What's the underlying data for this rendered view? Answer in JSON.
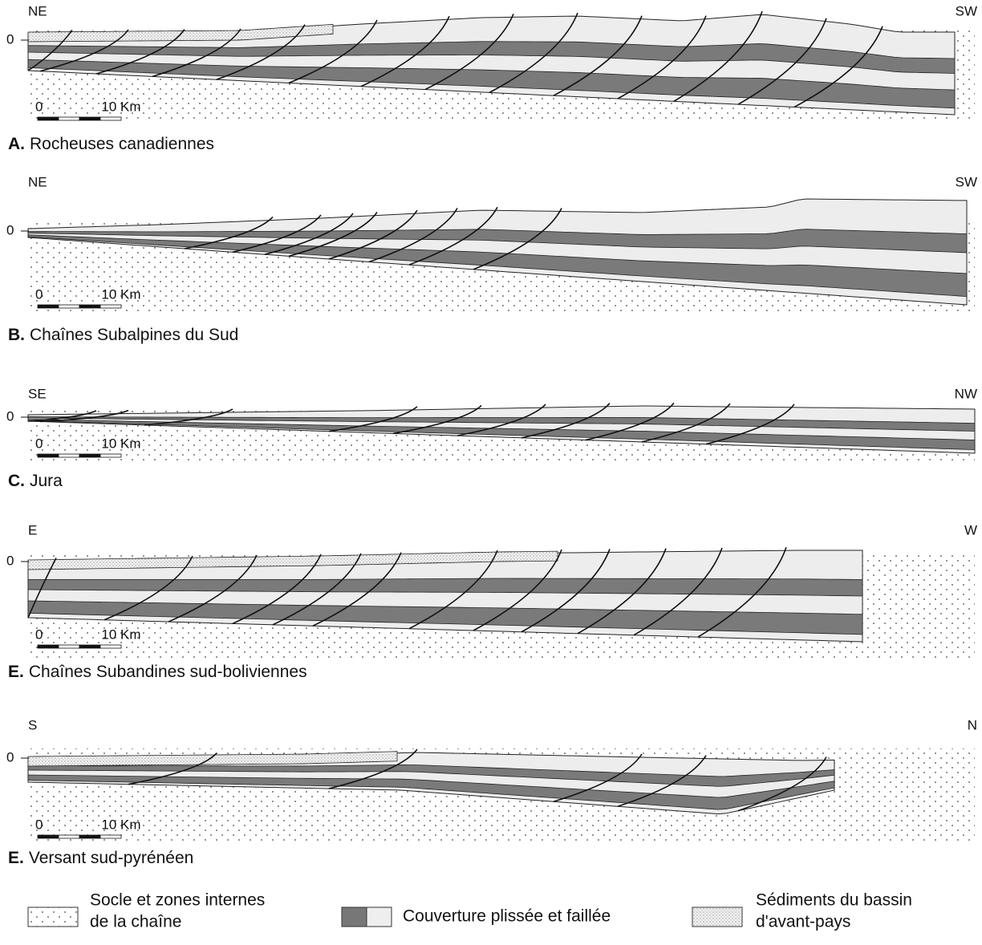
{
  "sections": [
    {
      "left": "NE",
      "right": "SW",
      "depth": "0",
      "scale_start": "0",
      "scale_end": "10 Km",
      "letter": "A.",
      "title": "Rocheuses canadiennes"
    },
    {
      "left": "NE",
      "right": "SW",
      "depth": "0",
      "scale_start": "0",
      "scale_end": "10 Km",
      "letter": "B.",
      "title": "Chaînes Subalpines du Sud"
    },
    {
      "left": "SE",
      "right": "NW",
      "depth": "0",
      "scale_start": "0",
      "scale_end": "10 Km",
      "letter": "C.",
      "title": "Jura"
    },
    {
      "left": "E",
      "right": "W",
      "depth": "0",
      "scale_start": "0",
      "scale_end": "10 Km",
      "letter": "E.",
      "title": "Chaînes Subandines sud-boliviennes"
    },
    {
      "left": "S",
      "right": "N",
      "depth": "0",
      "scale_start": "0",
      "scale_end": "10 Km",
      "letter": "E.",
      "title": "Versant sud-pyrénéen"
    }
  ],
  "legend": [
    {
      "lines": [
        "Socle et zones internes",
        "de la chaîne"
      ]
    },
    {
      "lines": [
        "Couverture plissée et faillée"
      ]
    },
    {
      "lines": [
        "Sédiments du bassin",
        "d'avant-pays"
      ]
    }
  ]
}
